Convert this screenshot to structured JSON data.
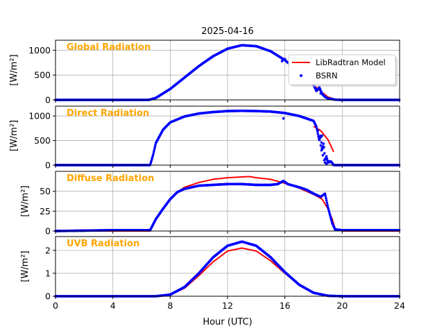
{
  "figure_title": "2025-04-16",
  "colors": {
    "model": "#ff0000",
    "bsrn": "#0000ff",
    "annotation": "#ffa500",
    "grid": "#b0b0b0"
  },
  "chart_data": [
    {
      "type": "line",
      "annotation": "Global Radiation",
      "ylabel": "[W/m²]",
      "ylim": [
        0,
        1200
      ],
      "yticks": [
        0,
        500,
        1000
      ],
      "xlim": [
        0,
        24
      ],
      "grid": true,
      "legend": {
        "placement": "right",
        "entries": [
          "LibRadtran Model",
          "BSRN"
        ]
      },
      "series": [
        {
          "name": "LibRadtran Model",
          "style": "line",
          "x": [
            0,
            6.5,
            7,
            8,
            9,
            10,
            11,
            12,
            13,
            14,
            15,
            16,
            17,
            17.5,
            18,
            18.5,
            19,
            19.5,
            20,
            24
          ],
          "y": [
            0,
            0,
            40,
            220,
            450,
            680,
            880,
            1030,
            1100,
            1080,
            980,
            800,
            560,
            430,
            300,
            170,
            60,
            10,
            0,
            0
          ]
        },
        {
          "name": "BSRN",
          "style": "points",
          "x": [
            0,
            6.5,
            7,
            8,
            9,
            10,
            11,
            12,
            13,
            14,
            15,
            16,
            17,
            17.5,
            18,
            18.2,
            18.4,
            18.6,
            18.8,
            19,
            19.5,
            20,
            24
          ],
          "y": [
            0,
            0,
            40,
            220,
            450,
            680,
            880,
            1030,
            1100,
            1080,
            980,
            800,
            560,
            430,
            300,
            180,
            250,
            120,
            60,
            30,
            5,
            0,
            0
          ]
        }
      ]
    },
    {
      "type": "line",
      "annotation": "Direct Radiation",
      "ylabel": "[W/m²]",
      "ylim": [
        0,
        1200
      ],
      "yticks": [
        0,
        500,
        1000
      ],
      "xlim": [
        0,
        24
      ],
      "grid": true,
      "series": [
        {
          "name": "LibRadtran Model",
          "style": "line",
          "x": [
            18,
            18.5,
            19,
            19.4
          ],
          "y": [
            790,
            700,
            520,
            270
          ]
        },
        {
          "name": "BSRN",
          "style": "points",
          "x": [
            0,
            6.6,
            6.8,
            7,
            7.5,
            8,
            9,
            10,
            11,
            12,
            13,
            14,
            15,
            16,
            17,
            18,
            18.2,
            18.4,
            18.5,
            18.6,
            18.7,
            18.8,
            18.9,
            19,
            19.2,
            19.4,
            19.6,
            24
          ],
          "y": [
            0,
            0,
            200,
            450,
            720,
            870,
            990,
            1050,
            1080,
            1100,
            1105,
            1100,
            1090,
            1060,
            1000,
            900,
            780,
            500,
            620,
            300,
            450,
            100,
            180,
            50,
            80,
            0,
            0,
            0
          ]
        }
      ]
    },
    {
      "type": "line",
      "annotation": "Diffuse Radiation",
      "ylabel": "[W/m²]",
      "ylim": [
        0,
        75
      ],
      "yticks": [
        0,
        25,
        50
      ],
      "xlim": [
        0,
        24
      ],
      "grid": true,
      "series": [
        {
          "name": "LibRadtran Model",
          "style": "line",
          "x": [
            0,
            6.6,
            7,
            7.5,
            8,
            8.5,
            9,
            10,
            11,
            12,
            13,
            13.5,
            14,
            15,
            16,
            17,
            18,
            18.6,
            19,
            19.3,
            19.5,
            20,
            24
          ],
          "y": [
            0,
            0,
            15,
            28,
            40,
            49,
            55,
            61,
            65,
            67,
            68,
            68.5,
            67,
            65,
            60,
            54,
            46,
            40,
            28,
            15,
            3,
            0,
            0
          ]
        },
        {
          "name": "BSRN",
          "style": "points",
          "x": [
            0,
            3.8,
            6.6,
            7,
            7.5,
            8,
            8.5,
            9,
            10,
            11,
            12,
            13,
            14,
            15,
            15.5,
            15.9,
            16.2,
            17,
            17.5,
            18,
            18.5,
            18.8,
            19,
            19.3,
            19.5,
            20,
            24
          ],
          "y": [
            0,
            1,
            1,
            15,
            28,
            40,
            49,
            53,
            57,
            58,
            59,
            59,
            58,
            58,
            59,
            63,
            59,
            55,
            52,
            47,
            43,
            47,
            30,
            10,
            2,
            1,
            1
          ]
        }
      ]
    },
    {
      "type": "line",
      "annotation": "UVB Radiation",
      "ylabel": "[W/m²]",
      "ylim": [
        0,
        2.6
      ],
      "yticks": [
        0,
        1,
        2
      ],
      "xlim": [
        0,
        24
      ],
      "xticks": [
        0,
        4,
        8,
        12,
        16,
        20,
        24
      ],
      "xlabel": "Hour (UTC)",
      "grid": true,
      "series": [
        {
          "name": "LibRadtran Model",
          "style": "line",
          "x": [
            0,
            7,
            8,
            9,
            10,
            11,
            12,
            13,
            14,
            15,
            16,
            17,
            18,
            19,
            20,
            24
          ],
          "y": [
            0,
            0,
            0.06,
            0.35,
            0.9,
            1.5,
            1.97,
            2.1,
            1.97,
            1.55,
            1.0,
            0.48,
            0.15,
            0.03,
            0,
            0
          ]
        },
        {
          "name": "BSRN",
          "style": "points",
          "x": [
            0,
            7,
            8,
            9,
            10,
            11,
            12,
            13,
            14,
            15,
            16,
            17,
            18,
            19,
            20,
            24
          ],
          "y": [
            0,
            0,
            0.07,
            0.4,
            1.0,
            1.7,
            2.2,
            2.38,
            2.2,
            1.7,
            1.05,
            0.5,
            0.15,
            0.02,
            0,
            0
          ]
        }
      ]
    }
  ]
}
